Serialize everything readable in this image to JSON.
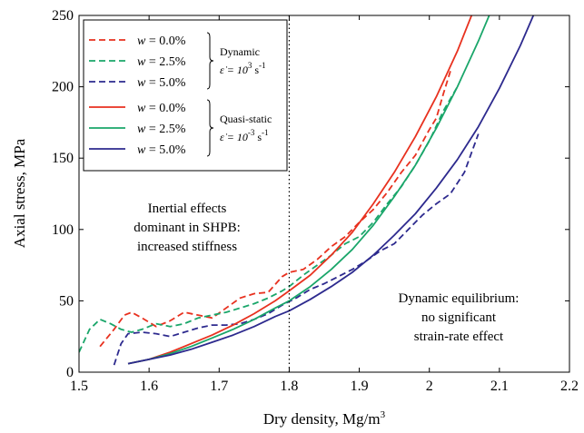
{
  "chart_data": {
    "type": "line",
    "xlabel": "Dry density, Mg/m",
    "xlabel_sup": "3",
    "ylabel": "Axial stress, MPa",
    "xlim": [
      1.5,
      2.2
    ],
    "ylim": [
      0,
      250
    ],
    "xticks": [
      "1.5",
      "1.6",
      "1.7",
      "1.8",
      "1.9",
      "2",
      "2.1",
      "2.2"
    ],
    "yticks": [
      "0",
      "50",
      "100",
      "150",
      "200",
      "250"
    ],
    "grid": false,
    "legend_position": "top-left",
    "legend_groups": [
      {
        "label_line1": "Dynamic",
        "rate_prefix": "ε̇ = 10",
        "rate_exp": "3",
        "rate_unit": " s",
        "rate_unit_exp": "-1"
      },
      {
        "label_line1": "Quasi-static",
        "rate_prefix": "ε̇ = 10",
        "rate_exp": "-3",
        "rate_unit": " s",
        "rate_unit_exp": "-1"
      }
    ],
    "vline_x": 1.8,
    "annotations": {
      "left": [
        "Inertial effects",
        "dominant in SHPB:",
        "increased stiffness"
      ],
      "right": [
        "Dynamic equilibrium:",
        "no significant",
        "strain-rate effect"
      ]
    },
    "series": [
      {
        "name": "w = 0.0%",
        "legend_var": "w",
        "legend_eq": " = 0.0%",
        "style": "dashed",
        "color": "#e8311f",
        "x": [
          1.53,
          1.55,
          1.565,
          1.575,
          1.59,
          1.61,
          1.63,
          1.65,
          1.67,
          1.69,
          1.71,
          1.73,
          1.75,
          1.77,
          1.79,
          1.8,
          1.82,
          1.84,
          1.86,
          1.88,
          1.9,
          1.92,
          1.94,
          1.96,
          1.98,
          2.0,
          2.01,
          2.02,
          2.03
        ],
        "y": [
          18,
          30,
          40,
          42,
          38,
          32,
          36,
          42,
          40,
          38,
          45,
          52,
          55,
          56,
          67,
          70,
          72,
          79,
          88,
          95,
          105,
          114,
          126,
          140,
          152,
          170,
          178,
          195,
          211
        ]
      },
      {
        "name": "w = 2.5%",
        "legend_var": "w",
        "legend_eq": " = 2.5%",
        "style": "dashed",
        "color": "#1aa66a",
        "x": [
          1.5,
          1.515,
          1.53,
          1.545,
          1.56,
          1.575,
          1.59,
          1.61,
          1.63,
          1.65,
          1.67,
          1.69,
          1.71,
          1.73,
          1.75,
          1.77,
          1.79,
          1.8,
          1.82,
          1.84,
          1.86,
          1.88,
          1.9,
          1.92,
          1.94,
          1.96,
          1.98,
          2.0,
          2.02,
          2.04
        ],
        "y": [
          14,
          30,
          37,
          34,
          30,
          28,
          30,
          34,
          32,
          34,
          38,
          40,
          42,
          45,
          48,
          52,
          57,
          60,
          68,
          75,
          82,
          90,
          95,
          105,
          118,
          130,
          145,
          162,
          183,
          200
        ]
      },
      {
        "name": "w = 5.0%",
        "legend_var": "w",
        "legend_eq": " = 5.0%",
        "style": "dashed",
        "color": "#2d2a8e",
        "x": [
          1.55,
          1.56,
          1.57,
          1.59,
          1.61,
          1.63,
          1.65,
          1.67,
          1.69,
          1.71,
          1.73,
          1.75,
          1.77,
          1.79,
          1.81,
          1.83,
          1.85,
          1.87,
          1.89,
          1.91,
          1.93,
          1.95,
          1.97,
          1.99,
          2.01,
          2.03,
          2.05,
          2.07
        ],
        "y": [
          5,
          20,
          27,
          28,
          27,
          25,
          28,
          31,
          33,
          33,
          34,
          37,
          41,
          47,
          52,
          58,
          62,
          67,
          72,
          78,
          85,
          90,
          100,
          110,
          118,
          125,
          140,
          167
        ]
      },
      {
        "name": "w = 0.0%",
        "legend_var": "w",
        "legend_eq": " = 0.0%",
        "style": "solid",
        "color": "#e8311f",
        "x": [
          1.57,
          1.6,
          1.63,
          1.66,
          1.69,
          1.72,
          1.75,
          1.78,
          1.8,
          1.83,
          1.86,
          1.89,
          1.92,
          1.95,
          1.98,
          2.01,
          2.04,
          2.07,
          2.1
        ],
        "y": [
          6,
          9,
          14,
          20,
          26,
          33,
          41,
          50,
          57,
          68,
          82,
          98,
          118,
          140,
          165,
          193,
          225,
          262,
          300
        ]
      },
      {
        "name": "w = 2.5%",
        "legend_var": "w",
        "legend_eq": " = 2.5%",
        "style": "solid",
        "color": "#1aa66a",
        "x": [
          1.57,
          1.6,
          1.63,
          1.66,
          1.69,
          1.72,
          1.75,
          1.78,
          1.8,
          1.83,
          1.86,
          1.89,
          1.92,
          1.95,
          1.98,
          2.01,
          2.04,
          2.07,
          2.1,
          2.12
        ],
        "y": [
          6,
          9,
          13,
          18,
          24,
          30,
          37,
          45,
          50,
          60,
          72,
          86,
          103,
          123,
          145,
          171,
          200,
          232,
          267,
          290
        ]
      },
      {
        "name": "w = 5.0%",
        "legend_var": "w",
        "legend_eq": " = 5.0%",
        "style": "solid",
        "color": "#2d2a8e",
        "x": [
          1.57,
          1.6,
          1.63,
          1.66,
          1.69,
          1.72,
          1.75,
          1.78,
          1.8,
          1.83,
          1.86,
          1.89,
          1.92,
          1.95,
          1.98,
          2.01,
          2.04,
          2.07,
          2.1,
          2.13,
          2.16,
          2.18
        ],
        "y": [
          6,
          9,
          12,
          16,
          21,
          26,
          32,
          39,
          43,
          51,
          60,
          70,
          82,
          96,
          111,
          129,
          149,
          172,
          199,
          229,
          263,
          290
        ]
      }
    ]
  }
}
